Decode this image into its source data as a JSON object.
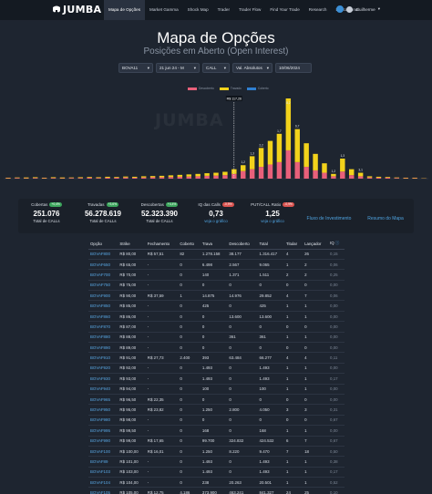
{
  "header": {
    "logo_text": "JUMBA",
    "nav": [
      "Mapa de Opções",
      "Market Gamma",
      "Shock Map",
      "Trader",
      "Trader Flow",
      "Find Your Trade",
      "Research",
      "Educacional"
    ],
    "active_nav": "Mapa de Opções",
    "user_name": "Guilherme"
  },
  "page": {
    "title": "Mapa de Opções",
    "subtitle": "Posições em Aberto (Open Interest)"
  },
  "filters": [
    "BOVA11",
    "21 jun 24 - M",
    "CALL",
    "Val. Absolutos",
    "10/06/2024"
  ],
  "chart_data": {
    "type": "bar",
    "spot_label": "R$ 117,26",
    "series": [
      {
        "name": "Descoberto",
        "color": "#e8607a"
      },
      {
        "name": "Travado",
        "color": "#f2d21b"
      },
      {
        "name": "Coberto",
        "color": "#2f7fd1"
      }
    ],
    "stacks": [
      [
        0.2,
        0.2,
        0
      ],
      [
        0.3,
        0.2,
        0
      ],
      [
        0.2,
        0.3,
        0
      ],
      [
        0.3,
        0.3,
        0
      ],
      [
        0.2,
        0.2,
        0
      ],
      [
        0.3,
        0.3,
        0
      ],
      [
        0.2,
        0.3,
        0
      ],
      [
        0.3,
        0.2,
        0
      ],
      [
        0.3,
        0.3,
        0
      ],
      [
        0.4,
        0.3,
        0
      ],
      [
        0.3,
        0.3,
        0
      ],
      [
        0.4,
        0.4,
        0
      ],
      [
        0.4,
        0.3,
        0
      ],
      [
        0.5,
        0.4,
        0
      ],
      [
        0.4,
        0.4,
        0
      ],
      [
        0.5,
        0.5,
        0
      ],
      [
        0.6,
        0.5,
        0
      ],
      [
        0.6,
        0.6,
        0
      ],
      [
        0.7,
        0.7,
        0
      ],
      [
        0.8,
        0.8,
        0
      ],
      [
        0.9,
        0.9,
        0
      ],
      [
        1.0,
        1.0,
        0
      ],
      [
        1.2,
        1.1,
        0
      ],
      [
        1.3,
        1.2,
        0
      ],
      [
        1.5,
        1.4,
        0
      ],
      [
        2.0,
        2.0,
        0
      ],
      [
        3.2,
        2.5,
        0
      ],
      [
        4.0,
        5.5,
        0
      ],
      [
        5.0,
        8.0,
        0
      ],
      [
        6.0,
        10.0,
        0
      ],
      [
        7.0,
        12.0,
        0
      ],
      [
        12.0,
        22.0,
        0
      ],
      [
        7.0,
        14.0,
        0
      ],
      [
        5.0,
        10.0,
        0
      ],
      [
        3.5,
        7.0,
        0
      ],
      [
        2.5,
        4.0,
        0
      ],
      [
        1.0,
        1.0,
        0
      ],
      [
        3.0,
        5.5,
        0
      ],
      [
        1.5,
        2.5,
        0
      ],
      [
        1.0,
        1.5,
        0
      ],
      [
        0.5,
        0.5,
        0
      ],
      [
        0.4,
        0.4,
        0
      ],
      [
        0.4,
        0.3,
        0
      ],
      [
        0.3,
        0.2,
        0
      ],
      [
        0.2,
        0.2,
        0
      ],
      [
        0.2,
        0.2,
        0
      ],
      [
        0.1,
        0.1,
        0
      ]
    ],
    "data_labels": [
      "1,2",
      "1,3",
      "2,2",
      "1,7",
      "8,2",
      "6,7",
      "1,2",
      "1,3",
      "3,1"
    ]
  },
  "stats": [
    {
      "label": "Cobertas",
      "change": "+0,4%",
      "change_type": "up",
      "value": "251.076",
      "sub": "Total de CALLs"
    },
    {
      "label": "Travadas",
      "change": "+3,6%",
      "change_type": "up",
      "value": "56.278.619",
      "sub": "Total de CALLs"
    },
    {
      "label": "Descobertas",
      "change": "+4,4%",
      "change_type": "up",
      "value": "52.323.390",
      "sub": "Total de CALLs"
    },
    {
      "label": "IQ das Calls",
      "change": "-0,9%",
      "change_type": "down",
      "value": "0,73",
      "link": "veja o gráfico"
    },
    {
      "label": "PUT/CALL Ratio",
      "change": "-0,9%",
      "change_type": "down",
      "value": "1,25",
      "link": "veja o gráfico"
    },
    {
      "plain_link": "Fluxo de Investimento"
    },
    {
      "plain_link": "Resumo do Mapa"
    }
  ],
  "table": {
    "headers": [
      "Opção",
      "Strike",
      "Fechamento",
      "Coberto",
      "Trava",
      "Descoberto",
      "Total",
      "Titular",
      "Lançador",
      "IQ"
    ],
    "rows": [
      [
        "BOVAF800",
        "R$ 80,00",
        "R$ 57,51",
        "82",
        "1.278.158",
        "38.177",
        "1.316.417",
        "4",
        "26",
        "0,15"
      ],
      [
        "BOVAF650",
        "R$ 65,00",
        "-",
        "0",
        "6.498",
        "2.567",
        "9.065",
        "1",
        "2",
        "0,06"
      ],
      [
        "BOVAF700",
        "R$ 70,00",
        "-",
        "0",
        "140",
        "1.371",
        "1.511",
        "2",
        "2",
        "0,25"
      ],
      [
        "BOVAF750",
        "R$ 75,00",
        "-",
        "0",
        "0",
        "0",
        "0",
        "0",
        "0",
        "0,00"
      ],
      [
        "BOVAF900",
        "R$ 90,00",
        "R$ 37,59",
        "1",
        "14.875",
        "14.976",
        "29.852",
        "4",
        "7",
        "0,06"
      ],
      [
        "BOVAF850",
        "R$ 85,00",
        "-",
        "0",
        "425",
        "0",
        "425",
        "1",
        "1",
        "0,00"
      ],
      [
        "BOVAF860",
        "R$ 86,00",
        "-",
        "0",
        "0",
        "13.600",
        "13.600",
        "1",
        "1",
        "0,00"
      ],
      [
        "BOVAF870",
        "R$ 87,00",
        "-",
        "0",
        "0",
        "0",
        "0",
        "0",
        "0",
        "0,00"
      ],
      [
        "BOVAF880",
        "R$ 88,00",
        "-",
        "0",
        "0",
        "361",
        "361",
        "1",
        "1",
        "0,00"
      ],
      [
        "BOVAF890",
        "R$ 89,00",
        "-",
        "0",
        "0",
        "0",
        "0",
        "0",
        "0",
        "0,00"
      ],
      [
        "BOVAF910",
        "R$ 91,00",
        "R$ 27,73",
        "2.400",
        "393",
        "63.484",
        "66.277",
        "4",
        "4",
        "0,11"
      ],
      [
        "BOVAF920",
        "R$ 92,00",
        "-",
        "0",
        "1.493",
        "0",
        "1.493",
        "1",
        "1",
        "0,00"
      ],
      [
        "BOVAF930",
        "R$ 93,00",
        "-",
        "0",
        "1.493",
        "0",
        "1.493",
        "1",
        "1",
        "0,17"
      ],
      [
        "BOVAF940",
        "R$ 94,00",
        "-",
        "0",
        "100",
        "0",
        "100",
        "1",
        "1",
        "0,00"
      ],
      [
        "BOVAF965",
        "R$ 96,50",
        "R$ 22,35",
        "0",
        "0",
        "0",
        "0",
        "0",
        "0",
        "0,00"
      ],
      [
        "BOVAF950",
        "R$ 95,00",
        "R$ 23,82",
        "0",
        "1.250",
        "2.800",
        "4.050",
        "3",
        "3",
        "0,31"
      ],
      [
        "BOVAF980",
        "R$ 98,00",
        "-",
        "0",
        "0",
        "0",
        "0",
        "0",
        "0",
        "0,67"
      ],
      [
        "BOVAF995",
        "R$ 99,50",
        "-",
        "0",
        "168",
        "0",
        "168",
        "1",
        "1",
        "0,00"
      ],
      [
        "BOVAF990",
        "R$ 99,00",
        "R$ 17,65",
        "0",
        "99.700",
        "324.832",
        "424.532",
        "6",
        "7",
        "0,67"
      ],
      [
        "BOVAF100",
        "R$ 100,00",
        "R$ 16,01",
        "0",
        "1.250",
        "8.220",
        "9.470",
        "7",
        "18",
        "0,50"
      ],
      [
        "BOVAF89",
        "R$ 101,00",
        "-",
        "0",
        "1.493",
        "0",
        "1.493",
        "1",
        "1",
        "0,38"
      ],
      [
        "BOVAF103",
        "R$ 103,00",
        "-",
        "0",
        "1.493",
        "0",
        "1.493",
        "1",
        "1",
        "0,17"
      ],
      [
        "BOVAF104",
        "R$ 104,00",
        "-",
        "0",
        "238",
        "20.263",
        "20.501",
        "1",
        "1",
        "0,52"
      ],
      [
        "BOVAF105",
        "R$ 105,00",
        "R$ 12,75",
        "4.186",
        "373.900",
        "463.241",
        "841.327",
        "24",
        "25",
        "0,10"
      ]
    ]
  }
}
